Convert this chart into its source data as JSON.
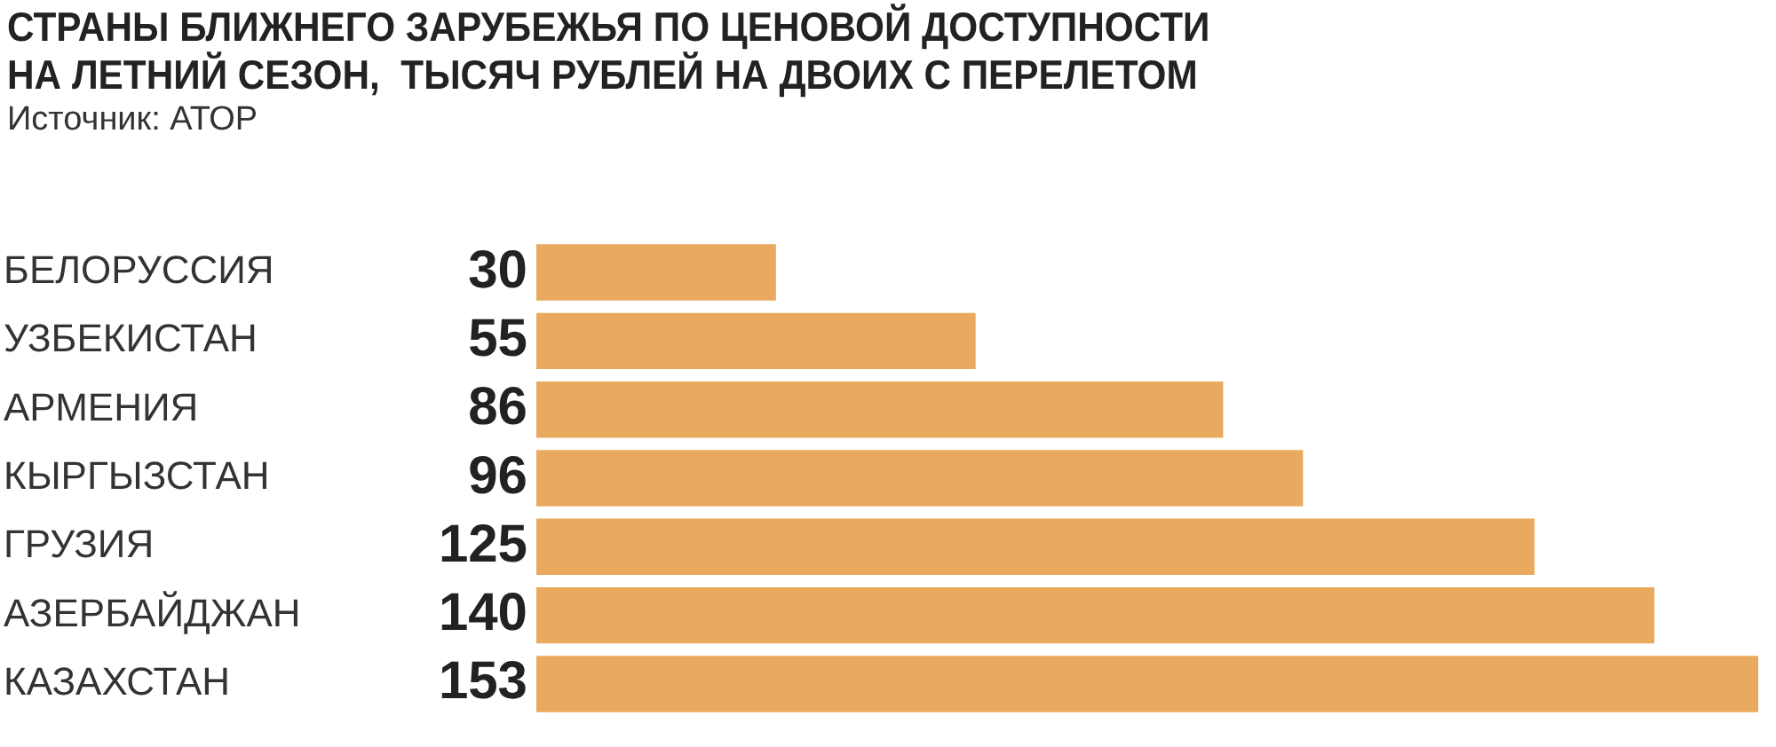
{
  "chart_data": {
    "type": "bar",
    "orientation": "horizontal",
    "title": "СТРАНЫ БЛИЖНЕГО ЗАРУБЕЖЬЯ ПО ЦЕНОВОЙ ДОСТУПНОСТИ НА ЛЕТНИЙ СЕЗОН,  ТЫСЯЧ РУБЛЕЙ НА ДВОИХ С ПЕРЕЛЕТОМ",
    "subtitle": "Источник: АТОР",
    "categories": [
      "БЕЛОРУССИЯ",
      "УЗБЕКИСТАН",
      "АРМЕНИЯ",
      "КЫРГЫЗСТАН",
      "ГРУЗИЯ",
      "АЗЕРБАЙДЖАН",
      "КАЗАХСТАН"
    ],
    "values": [
      30,
      55,
      86,
      96,
      125,
      140,
      153
    ],
    "color": "#e9aa5f",
    "data_labels": true
  }
}
